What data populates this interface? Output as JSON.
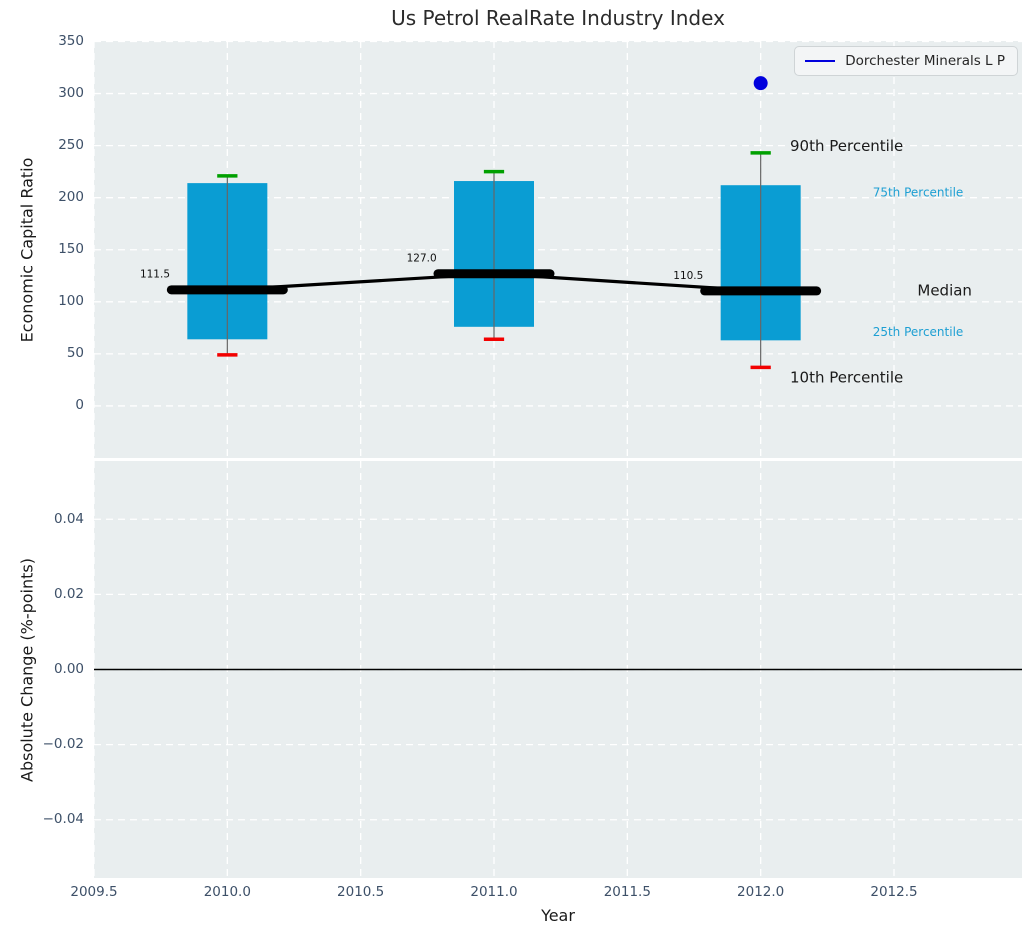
{
  "title": "Us Petrol RealRate Industry Index",
  "legend": {
    "label": "Dorchester Minerals L P"
  },
  "colors": {
    "panel_bg": "#e9eeef",
    "grid": "#ffffff",
    "tick_text": "#3d5068",
    "title_text": "#2b2b2b",
    "box_fill": "#0a9dd3",
    "whisker": "#666666",
    "cap_90th": "#00a000",
    "cap_10th": "#f20000",
    "median_line": "#000000",
    "company_point": "#0000dd",
    "accent_annotation": "#1d9fd3"
  },
  "chart_data": {
    "type": "boxplot",
    "title": "Us Petrol RealRate Industry Index",
    "xlabel": "Year",
    "ylabel_top": "Economic Capital Ratio",
    "ylabel_bottom": "Absolute Change (%-points)",
    "grid": "on",
    "legend_position": "upper right",
    "xlim": [
      2009.5,
      2012.98
    ],
    "ylim_top": [
      -50,
      350.5
    ],
    "ylim_bottom": [
      -0.0555,
      0.0555
    ],
    "xticks": {
      "values": [
        2009.5,
        2010.0,
        2010.5,
        2011.0,
        2011.5,
        2012.0,
        2012.5
      ],
      "labels": [
        "2009.5",
        "2010.0",
        "2010.5",
        "2011.0",
        "2011.5",
        "2012.0",
        "2012.5"
      ]
    },
    "yticks_top": {
      "values": [
        0,
        50,
        100,
        150,
        200,
        250,
        300,
        350
      ],
      "labels": [
        "0",
        "50",
        "100",
        "150",
        "200",
        "250",
        "300",
        "350"
      ]
    },
    "yticks_bottom": {
      "values": [
        -0.04,
        -0.02,
        0.0,
        0.02,
        0.04
      ],
      "labels": [
        "−0.04",
        "−0.02",
        "0.00",
        "0.02",
        "0.04"
      ]
    },
    "boxes": [
      {
        "year": 2010,
        "p10": 49,
        "q25": 64,
        "median": 111.5,
        "q75": 214,
        "p90": 221,
        "median_label": "111.5"
      },
      {
        "year": 2011,
        "p10": 64,
        "q25": 76,
        "median": 127.0,
        "q75": 216,
        "p90": 225,
        "median_label": "127.0"
      },
      {
        "year": 2012,
        "p10": 37,
        "q25": 63,
        "median": 110.5,
        "q75": 212,
        "p90": 243,
        "median_label": "110.5"
      }
    ],
    "median_line_series": {
      "x": [
        2010,
        2011,
        2012
      ],
      "y": [
        111.5,
        127.0,
        110.5
      ]
    },
    "company_point": {
      "name": "Dorchester Minerals L P",
      "x": 2012,
      "y": 310
    },
    "zero_line_bottom": 0.0,
    "annotations": [
      {
        "label": "90th Percentile",
        "x": 2012.11,
        "y": 250,
        "size": 15,
        "color": "#1a1a1a",
        "anchor": "start"
      },
      {
        "label": "75th Percentile",
        "x": 2012.59,
        "y": 205,
        "size": 12,
        "color": "#1d9fd3",
        "anchor": "middle"
      },
      {
        "label": "Median",
        "x": 2012.69,
        "y": 111,
        "size": 15,
        "color": "#1a1a1a",
        "anchor": "middle"
      },
      {
        "label": "25th Percentile",
        "x": 2012.59,
        "y": 71,
        "size": 12,
        "color": "#1d9fd3",
        "anchor": "middle"
      },
      {
        "label": "10th Percentile",
        "x": 2012.11,
        "y": 27.5,
        "size": 15,
        "color": "#1a1a1a",
        "anchor": "start"
      }
    ]
  }
}
